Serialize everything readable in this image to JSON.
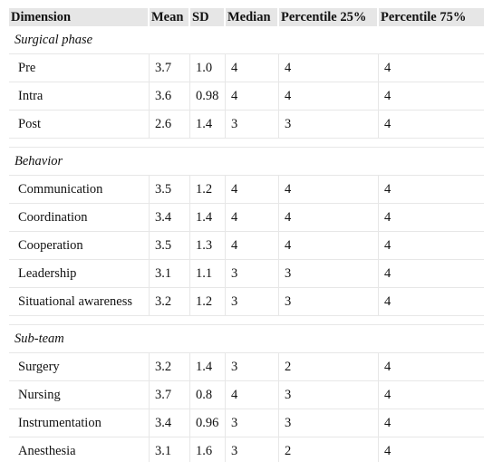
{
  "table": {
    "headers": [
      "Dimension",
      "Mean",
      "SD",
      "Median",
      "Percentile 25%",
      "Percentile 75%"
    ],
    "sections": [
      {
        "title": "Surgical phase",
        "rows": [
          [
            "Pre",
            "3.7",
            "1.0",
            "4",
            "4",
            "4"
          ],
          [
            "Intra",
            "3.6",
            "0.98",
            "4",
            "4",
            "4"
          ],
          [
            "Post",
            "2.6",
            "1.4",
            "3",
            "3",
            "4"
          ]
        ]
      },
      {
        "title": "Behavior",
        "rows": [
          [
            "Communication",
            "3.5",
            "1.2",
            "4",
            "4",
            "4"
          ],
          [
            "Coordination",
            "3.4",
            "1.4",
            "4",
            "4",
            "4"
          ],
          [
            "Cooperation",
            "3.5",
            "1.3",
            "4",
            "4",
            "4"
          ],
          [
            "Leadership",
            "3.1",
            "1.1",
            "3",
            "3",
            "4"
          ],
          [
            "Situational awareness",
            "3.2",
            "1.2",
            "3",
            "3",
            "4"
          ]
        ]
      },
      {
        "title": "Sub-team",
        "rows": [
          [
            "Surgery",
            "3.2",
            "1.4",
            "3",
            "2",
            "4"
          ],
          [
            "Nursing",
            "3.7",
            "0.8",
            "4",
            "3",
            "4"
          ],
          [
            "Instrumentation",
            "3.4",
            "0.96",
            "3",
            "3",
            "4"
          ],
          [
            "Anesthesia",
            "3.1",
            "1.6",
            "3",
            "2",
            "4"
          ]
        ]
      }
    ]
  }
}
